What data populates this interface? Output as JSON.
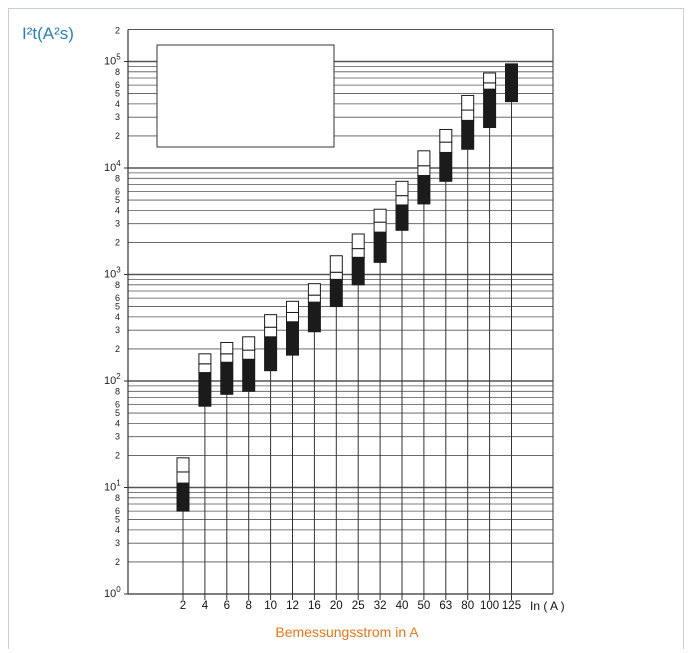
{
  "chart_data": {
    "type": "bar",
    "ylabel": "I²t(A²s)",
    "xlabel": "Bemessungsstrom in A",
    "x_unit_label": "In ( A )",
    "yscale": "log",
    "ylim": [
      1,
      200000
    ],
    "grid": true,
    "legend_box": "top-left",
    "y_major_ticks": [
      {
        "value": 1,
        "label": "10",
        "exp": "0"
      },
      {
        "value": 10,
        "label": "10",
        "exp": "1"
      },
      {
        "value": 100,
        "label": "10",
        "exp": "2"
      },
      {
        "value": 1000,
        "label": "10",
        "exp": "3"
      },
      {
        "value": 10000,
        "label": "10",
        "exp": "4"
      },
      {
        "value": 100000,
        "label": "10",
        "exp": "5"
      }
    ],
    "y_minor_tick_labels": [
      "2",
      "3",
      "4",
      "5",
      "6",
      "8"
    ],
    "top_tick_label": "2",
    "categories": [
      "2",
      "4",
      "6",
      "8",
      "10",
      "12",
      "16",
      "20",
      "25",
      "32",
      "40",
      "50",
      "63",
      "80",
      "100",
      "125"
    ],
    "series": [
      {
        "values": [
          6,
          58,
          75,
          80,
          125,
          175,
          290,
          500,
          800,
          1300,
          2600,
          4600,
          7500,
          15000,
          24000,
          42000
        ]
      },
      {
        "values": [
          11,
          120,
          150,
          160,
          260,
          360,
          550,
          900,
          1450,
          2500,
          4500,
          8500,
          14000,
          28000,
          55000,
          95000
        ]
      },
      {
        "values": [
          14,
          145,
          180,
          195,
          320,
          440,
          640,
          1050,
          1750,
          3100,
          5500,
          10500,
          17500,
          35000,
          63000,
          0
        ]
      },
      {
        "values": [
          19,
          180,
          230,
          260,
          420,
          560,
          820,
          1500,
          2400,
          4100,
          7500,
          14500,
          23000,
          48000,
          78000,
          0
        ]
      }
    ],
    "segment_colors": [
      "#1b1b1b",
      "#ffffff",
      "#ffffff"
    ]
  }
}
